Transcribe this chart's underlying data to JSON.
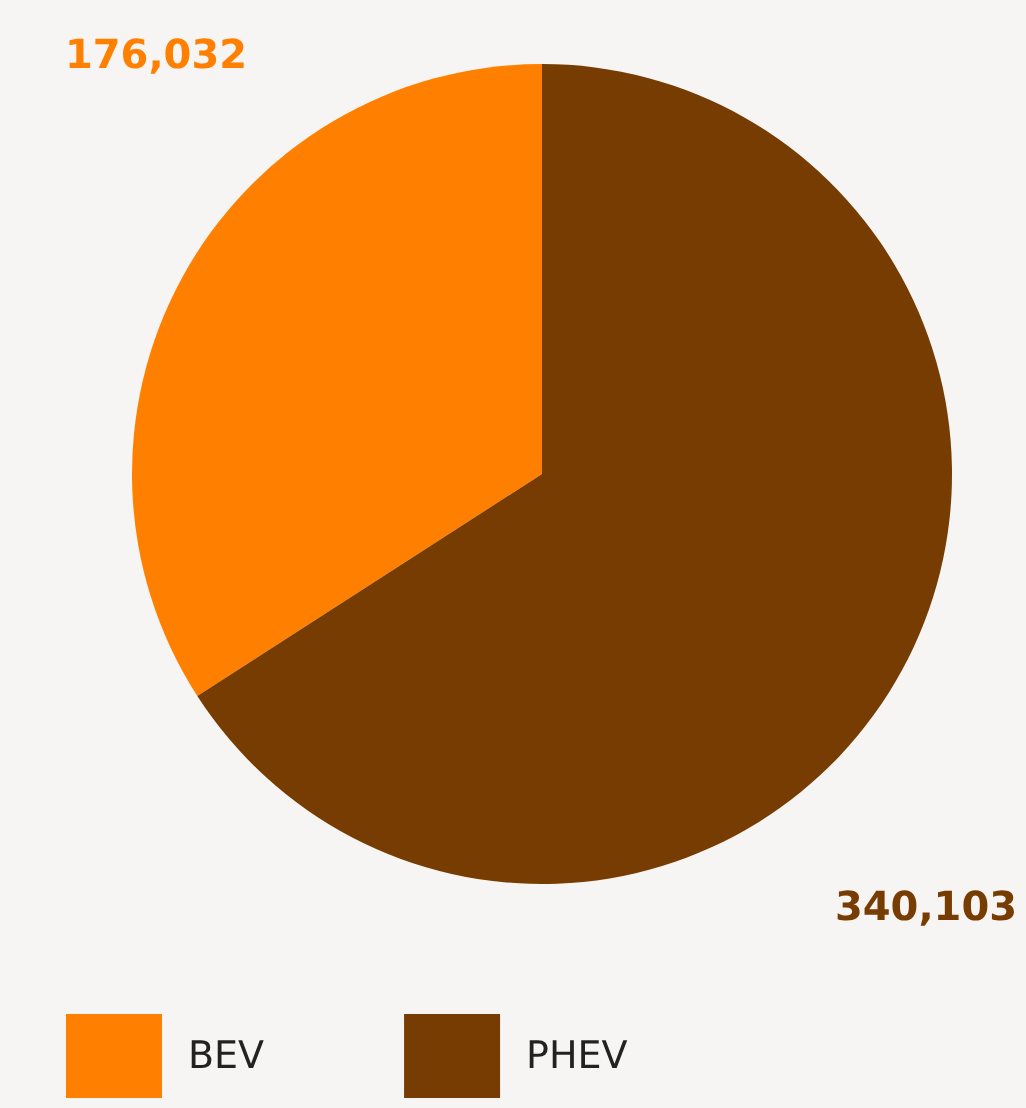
{
  "chart_data": {
    "type": "pie",
    "categories": [
      "BEV",
      "PHEV"
    ],
    "values": [
      176032,
      340103
    ],
    "colors": [
      "#ff8000",
      "#773c02"
    ],
    "value_labels": [
      "176,032",
      "340,103"
    ],
    "legend": "bottom left"
  }
}
